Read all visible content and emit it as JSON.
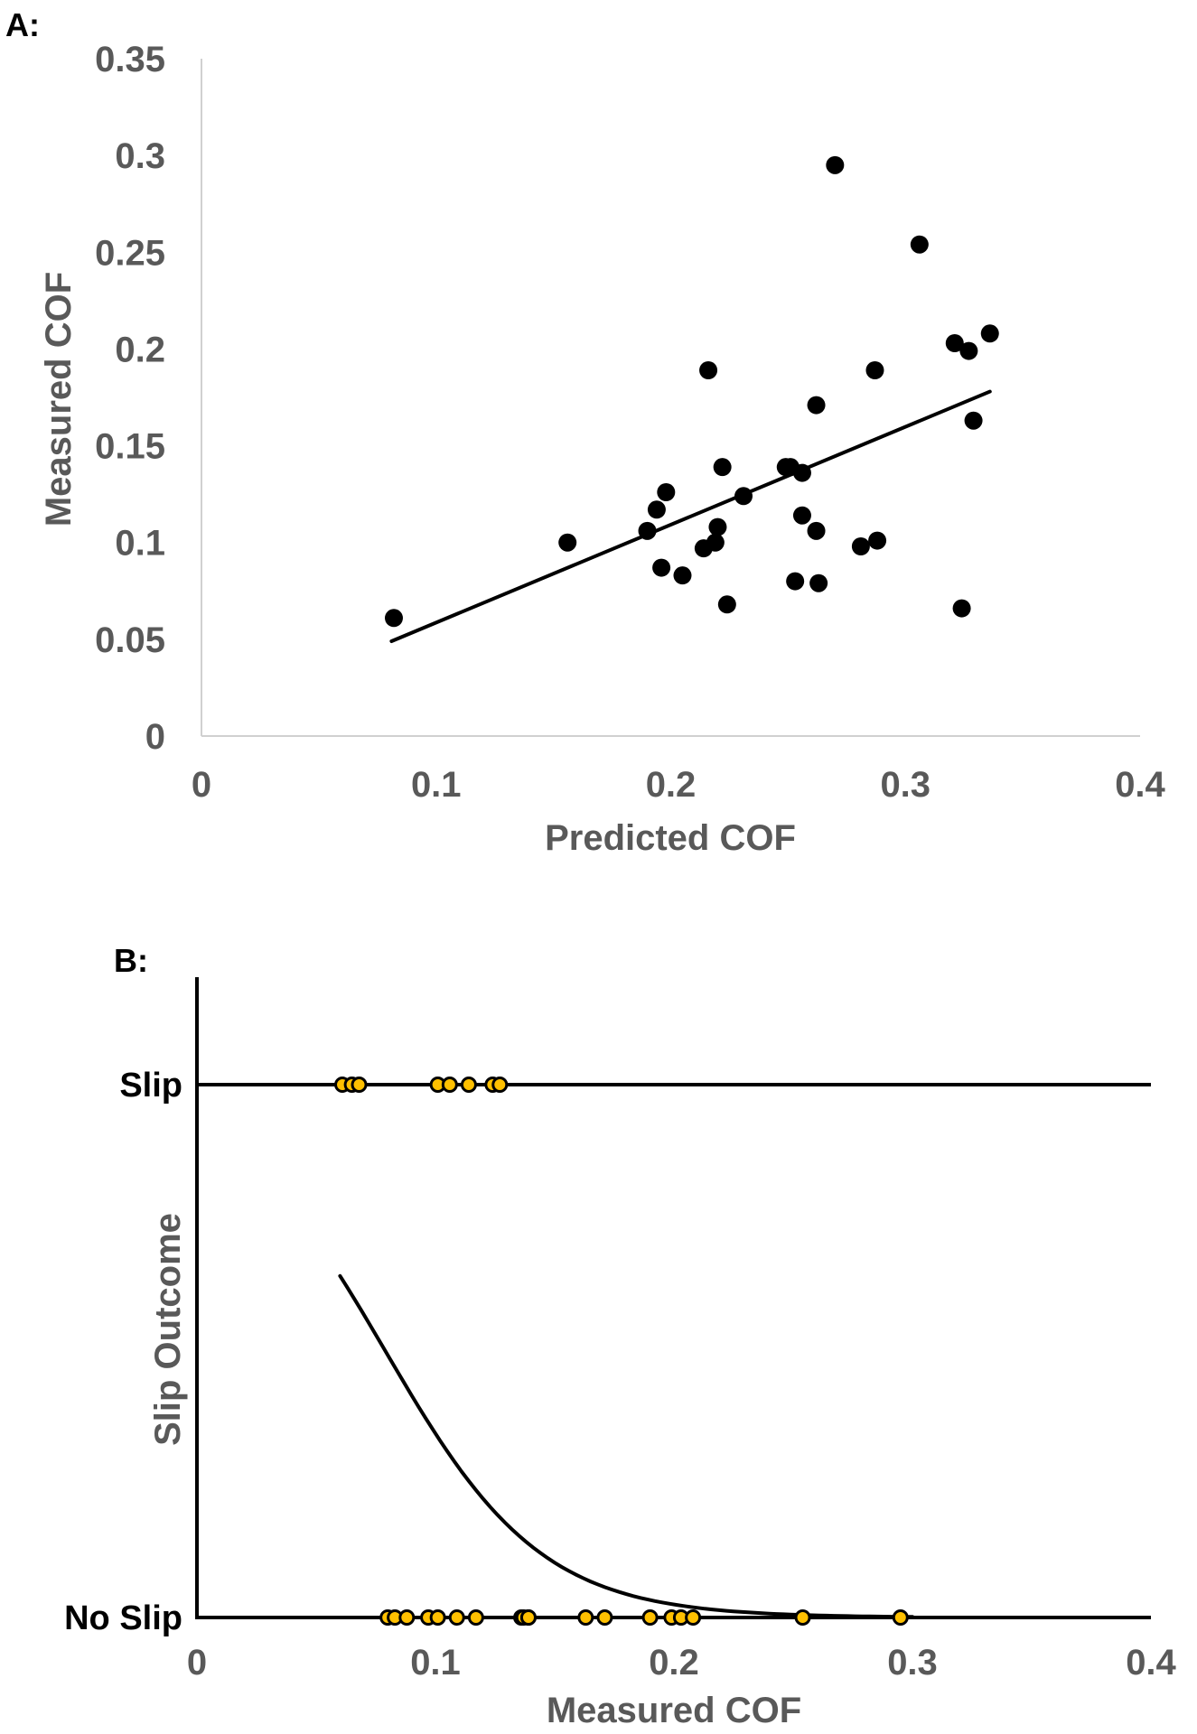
{
  "chart_data": [
    {
      "panel_label": "A:",
      "type": "scatter",
      "xlabel": "Predicted COF",
      "ylabel": "Measured COF",
      "xlim": [
        0,
        0.4
      ],
      "ylim": [
        0,
        0.35
      ],
      "x_ticks": [
        "0",
        "0.1",
        "0.2",
        "0.3",
        "0.4"
      ],
      "y_ticks": [
        "0",
        "0.05",
        "0.1",
        "0.15",
        "0.2",
        "0.25",
        "0.3",
        "0.35"
      ],
      "grid": false,
      "marker_color": "#000000",
      "points": [
        {
          "x": 0.082,
          "y": 0.061
        },
        {
          "x": 0.156,
          "y": 0.1
        },
        {
          "x": 0.19,
          "y": 0.106
        },
        {
          "x": 0.194,
          "y": 0.117
        },
        {
          "x": 0.198,
          "y": 0.126
        },
        {
          "x": 0.196,
          "y": 0.087
        },
        {
          "x": 0.205,
          "y": 0.083
        },
        {
          "x": 0.214,
          "y": 0.097
        },
        {
          "x": 0.219,
          "y": 0.1
        },
        {
          "x": 0.22,
          "y": 0.108
        },
        {
          "x": 0.224,
          "y": 0.068
        },
        {
          "x": 0.216,
          "y": 0.189
        },
        {
          "x": 0.222,
          "y": 0.139
        },
        {
          "x": 0.231,
          "y": 0.124
        },
        {
          "x": 0.249,
          "y": 0.139
        },
        {
          "x": 0.251,
          "y": 0.139
        },
        {
          "x": 0.256,
          "y": 0.136
        },
        {
          "x": 0.256,
          "y": 0.114
        },
        {
          "x": 0.253,
          "y": 0.08
        },
        {
          "x": 0.262,
          "y": 0.106
        },
        {
          "x": 0.263,
          "y": 0.079
        },
        {
          "x": 0.262,
          "y": 0.171
        },
        {
          "x": 0.27,
          "y": 0.295
        },
        {
          "x": 0.281,
          "y": 0.098
        },
        {
          "x": 0.288,
          "y": 0.101
        },
        {
          "x": 0.287,
          "y": 0.189
        },
        {
          "x": 0.306,
          "y": 0.254
        },
        {
          "x": 0.321,
          "y": 0.203
        },
        {
          "x": 0.324,
          "y": 0.066
        },
        {
          "x": 0.327,
          "y": 0.199
        },
        {
          "x": 0.329,
          "y": 0.163
        },
        {
          "x": 0.336,
          "y": 0.208
        }
      ],
      "trendline": {
        "type": "linear",
        "x": [
          0.081,
          0.336
        ],
        "y": [
          0.049,
          0.178
        ]
      }
    },
    {
      "panel_label": "B:",
      "type": "scatter",
      "xlabel": "Measured COF",
      "ylabel": "Slip Outcome",
      "xlim": [
        0,
        0.4
      ],
      "x_ticks": [
        "0",
        "0.1",
        "0.2",
        "0.3",
        "0.4"
      ],
      "categories": [
        "No Slip",
        "Slip"
      ],
      "grid": false,
      "marker_color": "#FFC000",
      "marker_edge": "#000000",
      "slip_points": [
        0.061,
        0.065,
        0.068,
        0.101,
        0.106,
        0.114,
        0.124,
        0.127
      ],
      "no_slip_points": [
        0.08,
        0.083,
        0.088,
        0.097,
        0.101,
        0.109,
        0.117,
        0.136,
        0.137,
        0.139,
        0.139,
        0.163,
        0.171,
        0.19,
        0.199,
        0.203,
        0.208,
        0.254,
        0.295
      ],
      "logistic_curve": {
        "intercept": 2.41,
        "slope": -30.5,
        "x_range": [
          0.06,
          0.3
        ]
      }
    }
  ]
}
